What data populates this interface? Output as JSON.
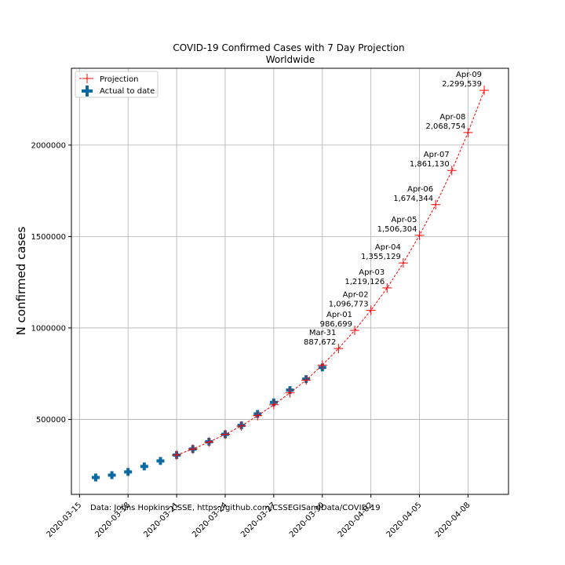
{
  "chart_data": {
    "type": "line",
    "title": "COVID-19 Confirmed Cases with 7 Day Projection",
    "subtitle": "Worldwide",
    "xlabel": "",
    "ylabel": "N confirmed cases",
    "source_note": "Data: Johns Hopkins CSSE, https://github.com/CSSEGISandData/COVID-19",
    "grid": true,
    "legend_position": "top-left",
    "xlim": [
      "2020-03-14T12:00",
      "2020-04-10T12:00"
    ],
    "ylim": [
      90000,
      2420000
    ],
    "x_ticks": [
      "2020-03-15",
      "2020-03-18",
      "2020-03-21",
      "2020-03-24",
      "2020-03-27",
      "2020-03-30",
      "2020-04-02",
      "2020-04-05",
      "2020-04-08"
    ],
    "y_ticks": [
      500000,
      1000000,
      1500000,
      2000000
    ],
    "y_tick_labels": [
      "500000",
      "1000000",
      "1500000",
      "2000000"
    ],
    "series": [
      {
        "name": "Projection",
        "style": "dashed-line-plus-markers",
        "color": "#ff0000",
        "x": [
          "2020-03-21",
          "2020-03-22",
          "2020-03-23",
          "2020-03-24",
          "2020-03-25",
          "2020-03-26",
          "2020-03-27",
          "2020-03-28",
          "2020-03-29",
          "2020-03-30",
          "2020-03-31",
          "2020-04-01",
          "2020-04-02",
          "2020-04-03",
          "2020-04-04",
          "2020-04-05",
          "2020-04-06",
          "2020-04-07",
          "2020-04-08",
          "2020-04-09"
        ],
        "values": [
          305000,
          338000,
          376000,
          418000,
          464000,
          520000,
          580000,
          645000,
          715000,
          797000,
          887672,
          986699,
          1096773,
          1219126,
          1355129,
          1506304,
          1674344,
          1861130,
          2068754,
          2299539
        ]
      },
      {
        "name": "Actual to date",
        "style": "plus-markers",
        "color": "#0a6aa1",
        "x": [
          "2020-03-16",
          "2020-03-17",
          "2020-03-18",
          "2020-03-19",
          "2020-03-20",
          "2020-03-21",
          "2020-03-22",
          "2020-03-23",
          "2020-03-24",
          "2020-03-25",
          "2020-03-26",
          "2020-03-27",
          "2020-03-28",
          "2020-03-29",
          "2020-03-30"
        ],
        "values": [
          182000,
          195000,
          213000,
          243000,
          273000,
          305000,
          338000,
          378000,
          418000,
          467000,
          530000,
          593000,
          660000,
          720000,
          784000
        ]
      }
    ],
    "annotations": [
      {
        "x": "2020-03-31",
        "y": 887672,
        "date": "Mar-31",
        "value": "887,672"
      },
      {
        "x": "2020-04-01",
        "y": 986699,
        "date": "Apr-01",
        "value": "986,699"
      },
      {
        "x": "2020-04-02",
        "y": 1096773,
        "date": "Apr-02",
        "value": "1,096,773"
      },
      {
        "x": "2020-04-03",
        "y": 1219126,
        "date": "Apr-03",
        "value": "1,219,126"
      },
      {
        "x": "2020-04-04",
        "y": 1355129,
        "date": "Apr-04",
        "value": "1,355,129"
      },
      {
        "x": "2020-04-05",
        "y": 1506304,
        "date": "Apr-05",
        "value": "1,506,304"
      },
      {
        "x": "2020-04-06",
        "y": 1674344,
        "date": "Apr-06",
        "value": "1,674,344"
      },
      {
        "x": "2020-04-07",
        "y": 1861130,
        "date": "Apr-07",
        "value": "1,861,130"
      },
      {
        "x": "2020-04-08",
        "y": 2068754,
        "date": "Apr-08",
        "value": "2,068,754"
      },
      {
        "x": "2020-04-09",
        "y": 2299539,
        "date": "Apr-09",
        "value": "2,299,539"
      }
    ]
  }
}
